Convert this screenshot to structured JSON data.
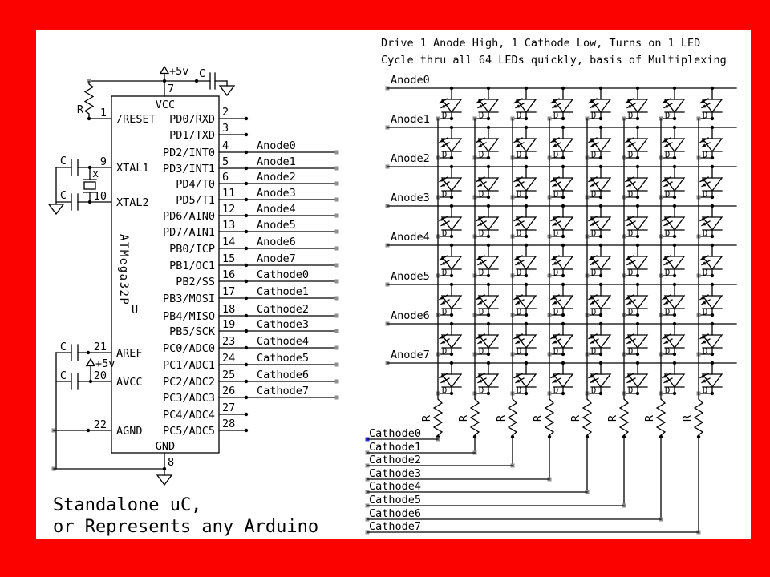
{
  "frame": {
    "border_color": "#fb0200",
    "canvas_color": "#ffffff"
  },
  "title": {
    "line1": "Drive 1 Anode High, 1 Cathode Low, Turns on 1 LED",
    "line2": "Cycle thru all 64 LEDs quickly, basis of Multiplexing"
  },
  "caption": {
    "line1": "Standalone uC,",
    "line2": "or Represents any Arduino"
  },
  "chip": {
    "name": "ATMega32P",
    "designator": "U",
    "top_pin": {
      "num": "7",
      "name": "VCC"
    },
    "bottom_pin": {
      "num": "8",
      "name": "GND"
    },
    "left_pins": [
      {
        "num": "1",
        "name": "/RESET"
      },
      {
        "num": "9",
        "name": "XTAL1"
      },
      {
        "num": "10",
        "name": "XTAL2"
      },
      {
        "num": "21",
        "name": "AREF"
      },
      {
        "num": "20",
        "name": "AVCC"
      },
      {
        "num": "22",
        "name": "AGND"
      }
    ],
    "right_pins": [
      {
        "num": "2",
        "name": "PD0/RXD",
        "net": ""
      },
      {
        "num": "3",
        "name": "PD1/TXD",
        "net": ""
      },
      {
        "num": "4",
        "name": "PD2/INT0",
        "net": "Anode0"
      },
      {
        "num": "5",
        "name": "PD3/INT1",
        "net": "Anode1"
      },
      {
        "num": "6",
        "name": "PD4/T0",
        "net": "Anode2"
      },
      {
        "num": "11",
        "name": "PD5/T1",
        "net": "Anode3"
      },
      {
        "num": "12",
        "name": "PD6/AIN0",
        "net": "Anode4"
      },
      {
        "num": "13",
        "name": "PD7/AIN1",
        "net": "Anode5"
      },
      {
        "num": "14",
        "name": "PB0/ICP",
        "net": "Anode6"
      },
      {
        "num": "15",
        "name": "PB1/OC1",
        "net": "Anode7"
      },
      {
        "num": "16",
        "name": "PB2/SS",
        "net": "Cathode0"
      },
      {
        "num": "17",
        "name": "PB3/MOSI",
        "net": "Cathode1"
      },
      {
        "num": "18",
        "name": "PB4/MISO",
        "net": "Cathode2"
      },
      {
        "num": "19",
        "name": "PB5/SCK",
        "net": "Cathode3"
      },
      {
        "num": "23",
        "name": "PC0/ADC0",
        "net": "Cathode4"
      },
      {
        "num": "24",
        "name": "PC1/ADC1",
        "net": "Cathode5"
      },
      {
        "num": "25",
        "name": "PC2/ADC2",
        "net": "Cathode6"
      },
      {
        "num": "26",
        "name": "PC3/ADC3",
        "net": "Cathode7"
      },
      {
        "num": "27",
        "name": "PC4/ADC4",
        "net": ""
      },
      {
        "num": "28",
        "name": "PC5/ADC5",
        "net": ""
      }
    ]
  },
  "power": {
    "vcc_label": "+5v",
    "avcc_label": "+5v"
  },
  "components": {
    "resistor_label": "R",
    "capacitor_label": "C",
    "crystal_label": "x",
    "diode_label": "D"
  },
  "matrix": {
    "led_rows": 8,
    "led_cols": 8,
    "row_labels": [
      "Anode0",
      "Anode1",
      "Anode2",
      "Anode3",
      "Anode4",
      "Anode5",
      "Anode6",
      "Anode7"
    ],
    "cathode_labels": [
      "Cathode0",
      "Cathode1",
      "Cathode2",
      "Cathode3",
      "Cathode4",
      "Cathode5",
      "Cathode6",
      "Cathode7"
    ],
    "marker_color": "#8f8f8f",
    "cathode0_marker_color": "#3535cf"
  }
}
